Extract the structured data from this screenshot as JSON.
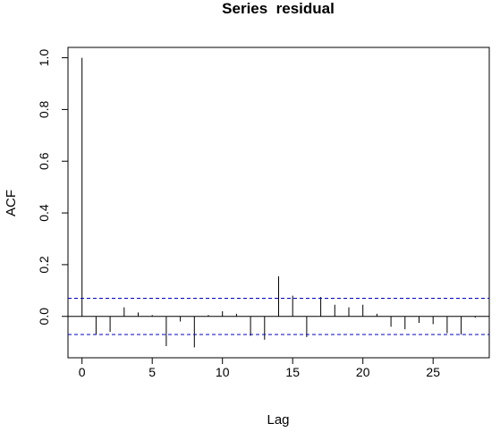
{
  "chart_data": {
    "type": "bar",
    "title": "Series  residual",
    "xlabel": "Lag",
    "ylabel": "ACF",
    "xlim": [
      -1,
      29
    ],
    "ylim": [
      -0.16,
      1.04
    ],
    "x_ticks": [
      0,
      5,
      10,
      15,
      20,
      25
    ],
    "x_tick_labels": [
      "0",
      "5",
      "10",
      "15",
      "20",
      "25"
    ],
    "y_ticks": [
      0.0,
      0.2,
      0.4,
      0.6,
      0.8,
      1.0
    ],
    "y_tick_labels": [
      "0.0",
      "0.2",
      "0.4",
      "0.6",
      "0.8",
      "1.0"
    ],
    "lags": [
      0,
      1,
      2,
      3,
      4,
      5,
      6,
      7,
      8,
      9,
      10,
      11,
      12,
      13,
      14,
      15,
      16,
      17,
      18,
      19,
      20,
      21,
      22,
      23,
      24,
      25,
      26,
      27,
      28
    ],
    "values": [
      1.0,
      -0.07,
      -0.06,
      0.035,
      0.015,
      0.005,
      -0.115,
      -0.02,
      -0.12,
      0.005,
      0.02,
      0.01,
      -0.075,
      -0.09,
      0.155,
      0.08,
      -0.08,
      0.075,
      0.045,
      0.035,
      0.045,
      0.01,
      -0.04,
      -0.05,
      -0.025,
      -0.03,
      -0.065,
      -0.07,
      -0.005
    ],
    "confidence_bounds": [
      0.07,
      -0.07
    ],
    "confidence_color": "#0000cc",
    "zero_line": true,
    "grid": false
  }
}
